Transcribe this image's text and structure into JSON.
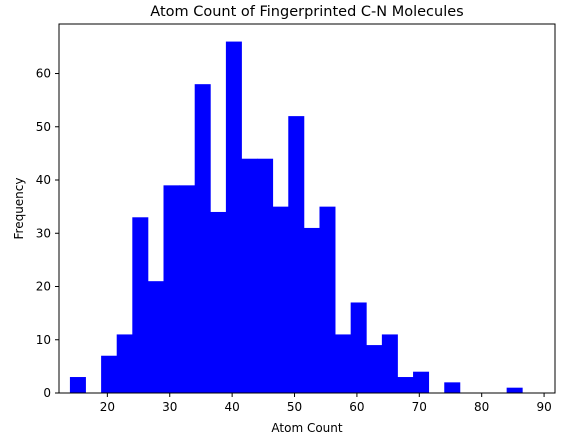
{
  "chart_data": {
    "type": "histogram",
    "title": "Atom Count of Fingerprinted C-N Molecules",
    "xlabel": "Atom Count",
    "ylabel": "Frequency",
    "bar_color": "#0000ff",
    "grid": false,
    "bin_start": 14,
    "bin_width": 2.5,
    "values": [
      3,
      0,
      7,
      11,
      33,
      21,
      39,
      39,
      58,
      34,
      66,
      44,
      44,
      35,
      52,
      31,
      35,
      11,
      17,
      9,
      11,
      3,
      4,
      0,
      2,
      0,
      0,
      0,
      1
    ],
    "xlim": [
      12.25,
      91.75
    ],
    "ylim": [
      0,
      69.3
    ],
    "x_ticks": [
      20,
      30,
      40,
      50,
      60,
      70,
      80,
      90
    ],
    "y_ticks": [
      0,
      10,
      20,
      30,
      40,
      50,
      60
    ]
  }
}
